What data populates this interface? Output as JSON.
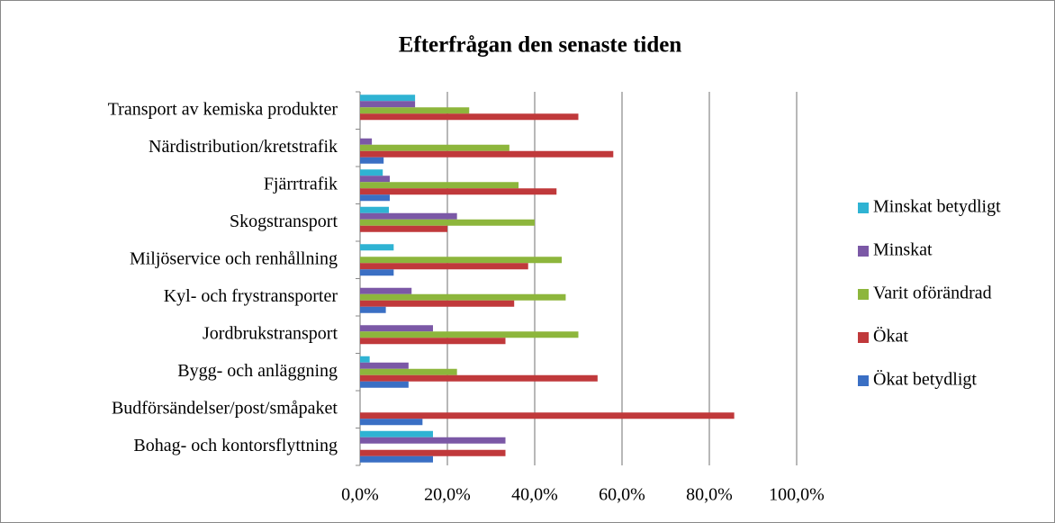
{
  "chart_data": {
    "type": "hbar",
    "title": "Efterfrågan den senaste tiden",
    "categories": [
      "Transport av kemiska produkter",
      "Närdistribution/kretstrafik",
      "Fjärrtrafik",
      "Skogstransport",
      "Miljöservice och renhållning",
      "Kyl- och frystransporter",
      "Jordbrukstransport",
      "Bygg- och anläggning",
      "Budförsändelser/post/småpaket",
      "Bohag- och kontorsflyttning"
    ],
    "series": [
      {
        "name": "Minskat betydligt",
        "color": "#2fb3d3",
        "values": [
          12.6,
          0,
          5.2,
          6.6,
          7.7,
          0,
          0,
          2.2,
          0,
          16.7
        ]
      },
      {
        "name": "Minskat",
        "color": "#7b58a6",
        "values": [
          12.6,
          2.7,
          6.8,
          22.2,
          0,
          11.8,
          16.7,
          11.1,
          0,
          33.3
        ]
      },
      {
        "name": "Varit oförändrad",
        "color": "#8db63c",
        "values": [
          25,
          34.2,
          36.3,
          40,
          46.2,
          47.1,
          50,
          22.2,
          0,
          0
        ]
      },
      {
        "name": "Ökat",
        "color": "#c0393b",
        "values": [
          50,
          58,
          45,
          20,
          38.5,
          35.3,
          33.3,
          54.4,
          85.7,
          33.3
        ]
      },
      {
        "name": "Ökat betydligt",
        "color": "#3a6fc4",
        "values": [
          0,
          5.4,
          6.8,
          0,
          7.7,
          5.9,
          0,
          11.1,
          14.3,
          16.7
        ]
      }
    ],
    "xlim": [
      0,
      100
    ],
    "xticks": [
      {
        "value": 0,
        "label": "0,0%"
      },
      {
        "value": 20,
        "label": "20,0%"
      },
      {
        "value": 40,
        "label": "40,0%"
      },
      {
        "value": 60,
        "label": "60,0%"
      },
      {
        "value": 80,
        "label": "80,0%"
      },
      {
        "value": 100,
        "label": "100,0%"
      }
    ],
    "grid": true,
    "legend": "right"
  }
}
